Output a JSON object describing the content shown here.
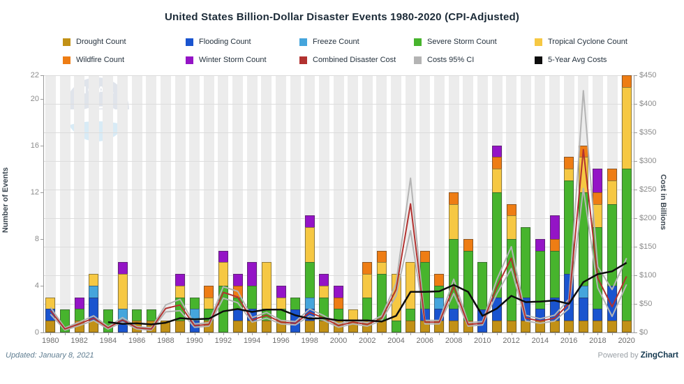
{
  "title": "United States Billion-Dollar Disaster Events 1980-2020 (CPI-Adjusted)",
  "footer": {
    "updated": "Updated: January 8, 2021",
    "powered_prefix": "Powered by ",
    "powered_brand": "ZingChart"
  },
  "watermark": {
    "text": "NOAA"
  },
  "colors": {
    "drought": "#c29116",
    "flooding": "#1a54cf",
    "freeze": "#45a5dc",
    "severe_storm": "#47b42d",
    "tropical_cyclone": "#f6c843",
    "wildfire": "#ee7d14",
    "winter_storm": "#9414c6",
    "combined_cost": "#b23230",
    "ci": "#b4b4b4",
    "avg": "#0d0d0d"
  },
  "chart_data": {
    "type": "combo-stacked-bar-line",
    "title": "United States Billion-Dollar Disaster Events 1980-2020 (CPI-Adjusted)",
    "x": [
      1980,
      1981,
      1982,
      1983,
      1984,
      1985,
      1986,
      1987,
      1988,
      1989,
      1990,
      1991,
      1992,
      1993,
      1994,
      1995,
      1996,
      1997,
      1998,
      1999,
      2000,
      2001,
      2002,
      2003,
      2004,
      2005,
      2006,
      2007,
      2008,
      2009,
      2010,
      2011,
      2012,
      2013,
      2014,
      2015,
      2016,
      2017,
      2018,
      2019,
      2020
    ],
    "x_tick_labels": [
      "1980",
      "1982",
      "1984",
      "1986",
      "1988",
      "1990",
      "1992",
      "1994",
      "1996",
      "1998",
      "2000",
      "2002",
      "2004",
      "2006",
      "2008",
      "2010",
      "2012",
      "2014",
      "2016",
      "2018",
      "2020"
    ],
    "left_axis": {
      "label": "Number of Events",
      "range": [
        0,
        22
      ],
      "ticks": [
        0,
        4,
        8,
        12,
        16,
        20,
        22
      ]
    },
    "right_axis": {
      "label": "Cost in Billions",
      "range": [
        0,
        450
      ],
      "tick_step": 50,
      "tick_labels": [
        "$0",
        "$50",
        "$100",
        "$150",
        "$200",
        "$250",
        "$300",
        "$350",
        "$400",
        "$450"
      ]
    },
    "grid": "horizontal-every-50-dollars",
    "legend_position": "top-two-rows",
    "series": [
      {
        "name": "Drought Count",
        "color_key": "drought",
        "values": [
          1,
          0,
          1,
          1,
          0,
          0,
          1,
          1,
          1,
          1,
          0,
          1,
          0,
          1,
          1,
          1,
          1,
          0,
          1,
          1,
          1,
          1,
          1,
          1,
          0,
          1,
          1,
          1,
          1,
          1,
          0,
          1,
          1,
          1,
          1,
          1,
          1,
          1,
          1,
          1,
          1
        ]
      },
      {
        "name": "Flooding Count",
        "color_key": "flooding",
        "values": [
          1,
          0,
          0,
          2,
          0,
          1,
          0,
          0,
          0,
          0,
          1,
          0,
          0,
          1,
          1,
          0,
          0,
          2,
          1,
          0,
          0,
          0,
          0,
          0,
          0,
          0,
          1,
          1,
          1,
          0,
          2,
          2,
          0,
          2,
          1,
          2,
          4,
          2,
          1,
          3,
          0
        ]
      },
      {
        "name": "Freeze Count",
        "color_key": "freeze",
        "values": [
          0,
          0,
          0,
          1,
          0,
          1,
          0,
          0,
          0,
          0,
          1,
          0,
          0,
          0,
          0,
          0,
          0,
          0,
          1,
          0,
          0,
          0,
          0,
          0,
          0,
          0,
          0,
          1,
          0,
          0,
          0,
          0,
          0,
          0,
          0,
          0,
          0,
          1,
          0,
          0,
          0
        ]
      },
      {
        "name": "Severe Storm Count",
        "color_key": "severe_storm",
        "values": [
          0,
          2,
          1,
          0,
          2,
          0,
          1,
          1,
          0,
          2,
          1,
          1,
          4,
          1,
          2,
          1,
          1,
          1,
          3,
          2,
          1,
          0,
          2,
          4,
          1,
          1,
          4,
          1,
          6,
          6,
          4,
          9,
          7,
          6,
          5,
          4,
          8,
          8,
          7,
          7,
          13
        ]
      },
      {
        "name": "Tropical Cyclone Count",
        "color_key": "tropical_cyclone",
        "values": [
          1,
          0,
          0,
          1,
          0,
          3,
          0,
          0,
          0,
          1,
          0,
          1,
          2,
          0,
          0,
          4,
          1,
          0,
          3,
          1,
          0,
          1,
          2,
          1,
          4,
          4,
          0,
          0,
          3,
          0,
          0,
          2,
          2,
          0,
          0,
          0,
          1,
          3,
          2,
          2,
          7
        ]
      },
      {
        "name": "Wildfire Count",
        "color_key": "wildfire",
        "values": [
          0,
          0,
          0,
          0,
          0,
          0,
          0,
          0,
          0,
          0,
          0,
          1,
          0,
          1,
          0,
          0,
          0,
          0,
          0,
          0,
          1,
          0,
          1,
          1,
          0,
          0,
          1,
          1,
          1,
          1,
          0,
          1,
          1,
          0,
          0,
          1,
          1,
          1,
          1,
          1,
          1
        ]
      },
      {
        "name": "Winter Storm Count",
        "color_key": "winter_storm",
        "values": [
          0,
          0,
          1,
          0,
          0,
          1,
          0,
          0,
          0,
          1,
          0,
          0,
          1,
          1,
          2,
          0,
          1,
          0,
          1,
          1,
          1,
          0,
          0,
          0,
          0,
          0,
          0,
          0,
          0,
          0,
          0,
          1,
          0,
          0,
          1,
          2,
          0,
          0,
          2,
          0,
          0
        ]
      }
    ],
    "lines": [
      {
        "name": "Costs 95% CI (upper)",
        "color_key": "ci",
        "width": 2,
        "values": [
          44,
          8,
          18,
          29,
          10,
          26,
          10,
          8,
          48,
          58,
          15,
          17,
          80,
          72,
          26,
          35,
          21,
          19,
          41,
          29,
          15,
          21,
          17,
          29,
          86,
          270,
          21,
          21,
          93,
          17,
          19,
          93,
          150,
          30,
          24,
          30,
          58,
          423,
          115,
          75,
          130
        ]
      },
      {
        "name": "Costs 95% CI (lower)",
        "color_key": "ci",
        "width": 2,
        "values": [
          32,
          4,
          12,
          21,
          6,
          18,
          6,
          4,
          36,
          38,
          9,
          11,
          60,
          52,
          18,
          25,
          15,
          13,
          29,
          21,
          9,
          15,
          11,
          21,
          64,
          178,
          15,
          15,
          68,
          11,
          13,
          68,
          112,
          20,
          16,
          20,
          42,
          252,
          78,
          28,
          84
        ]
      },
      {
        "name": "Combined Disaster Cost",
        "color_key": "combined_cost",
        "width": 2,
        "values": [
          38,
          6,
          15,
          25,
          8,
          22,
          8,
          6,
          42,
          48,
          12,
          14,
          70,
          62,
          22,
          30,
          18,
          16,
          35,
          25,
          12,
          18,
          14,
          25,
          75,
          225,
          18,
          18,
          80,
          14,
          16,
          80,
          130,
          25,
          20,
          25,
          50,
          320,
          95,
          45,
          98
        ]
      },
      {
        "name": "5-Year Avg Costs",
        "color_key": "avg",
        "width": 2.5,
        "values": [
          null,
          null,
          null,
          null,
          18,
          15,
          16,
          14,
          17,
          25,
          23,
          24,
          37,
          41,
          36,
          40,
          40,
          30,
          24,
          25,
          21,
          21,
          21,
          19,
          29,
          71,
          71,
          72,
          83,
          71,
          29,
          42,
          64,
          53,
          54,
          56,
          50,
          88,
          102,
          107,
          122
        ]
      }
    ]
  },
  "legend": [
    {
      "label": "Drought Count",
      "color_key": "drought"
    },
    {
      "label": "Flooding Count",
      "color_key": "flooding"
    },
    {
      "label": "Freeze Count",
      "color_key": "freeze"
    },
    {
      "label": "Severe Storm Count",
      "color_key": "severe_storm"
    },
    {
      "label": "Tropical Cyclone Count",
      "color_key": "tropical_cyclone"
    },
    {
      "label": "Wildfire Count",
      "color_key": "wildfire"
    },
    {
      "label": "Winter Storm Count",
      "color_key": "winter_storm"
    },
    {
      "label": "Combined Disaster Cost",
      "color_key": "combined_cost"
    },
    {
      "label": "Costs 95% CI",
      "color_key": "ci"
    },
    {
      "label": "5-Year Avg Costs",
      "color_key": "avg"
    }
  ]
}
